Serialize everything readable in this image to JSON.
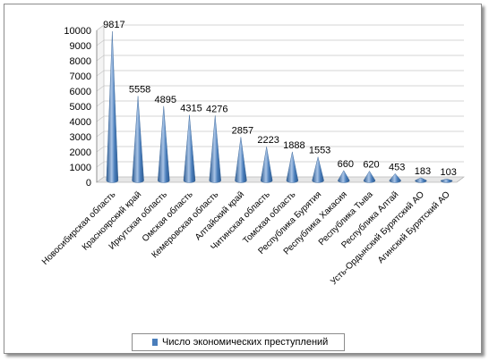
{
  "chart_data": {
    "type": "bar",
    "style": "3d-cone",
    "categories": [
      "Новосибирская область",
      "Красноярский край",
      "Иркутская область",
      "Омская область",
      "Кемеровская область",
      "Алтайский край",
      "Читинская область",
      "Томская область",
      "Республика Бурятия",
      "Республика Хакасия",
      "Республика Тыва",
      "Республика Алтай",
      "Усть-Ордынский Бурятский АО",
      "Агинский Бурятский АО"
    ],
    "series": [
      {
        "name": "Число экономических преступлений",
        "values": [
          9817,
          5558,
          4895,
          4315,
          4276,
          2857,
          2223,
          1888,
          1553,
          660,
          620,
          453,
          183,
          103
        ]
      }
    ],
    "data_labels": [
      "9817",
      "5558",
      "4895",
      "4315",
      "4276",
      "2857",
      "2223",
      "1888",
      "1553",
      "660",
      "620",
      "453",
      "183",
      "103"
    ],
    "y_ticks": [
      "0",
      "1000",
      "2000",
      "3000",
      "4000",
      "5000",
      "6000",
      "7000",
      "8000",
      "9000",
      "10000"
    ],
    "ylim": [
      0,
      10000
    ],
    "grid": true,
    "legend_position": "bottom",
    "title": "",
    "xlabel": "",
    "ylabel": "",
    "colors": {
      "bar": "#4a7ebb",
      "bar_dark": "#2c5a90",
      "bar_light": "#a9c4e6"
    }
  },
  "legend": {
    "label": "Число экономических преступлений"
  }
}
